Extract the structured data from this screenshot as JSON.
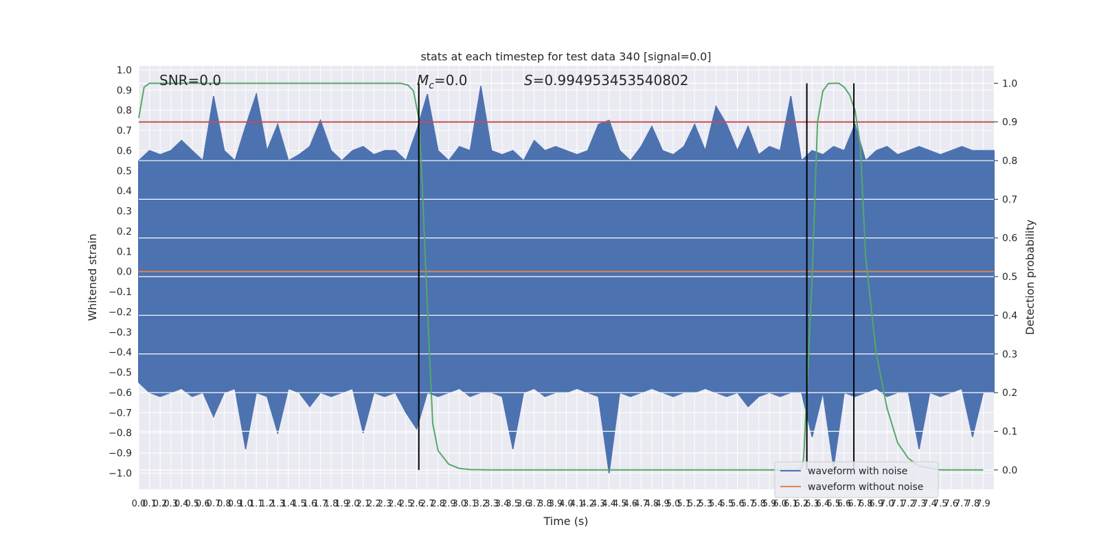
{
  "chart_data": {
    "type": "line",
    "title": "stats at each timestep for test data 340 [signal=0.0]",
    "xlabel": "Time (s)",
    "ylabel_left": "Whitened strain",
    "ylabel_right": "Detection probability",
    "xlim": [
      0.0,
      8.0
    ],
    "ylim_left": [
      -1.08,
      1.02
    ],
    "ylim_right": [
      -0.05,
      1.045
    ],
    "x_ticks": [
      0.0,
      0.1,
      0.2,
      0.3,
      0.4,
      0.5,
      0.6,
      0.7,
      0.8,
      0.9,
      1.0,
      1.1,
      1.2,
      1.3,
      1.4,
      1.5,
      1.6,
      1.7,
      1.8,
      1.9,
      2.0,
      2.1,
      2.2,
      2.3,
      2.4,
      2.5,
      2.6,
      2.7,
      2.8,
      2.9,
      3.0,
      3.1,
      3.2,
      3.3,
      3.4,
      3.5,
      3.6,
      3.7,
      3.8,
      3.9,
      4.0,
      4.1,
      4.2,
      4.3,
      4.4,
      4.5,
      4.6,
      4.7,
      4.8,
      4.9,
      5.0,
      5.1,
      5.2,
      5.3,
      5.4,
      5.5,
      5.6,
      5.7,
      5.8,
      5.9,
      6.0,
      6.1,
      6.2,
      6.3,
      6.4,
      6.5,
      6.6,
      6.7,
      6.8,
      6.9,
      7.0,
      7.1,
      7.2,
      7.3,
      7.4,
      7.5,
      7.6,
      7.7,
      7.8,
      7.9
    ],
    "x_tick_labels": [
      "0.0",
      "0.1",
      "0.2",
      "0.3",
      "0.4",
      "0.5",
      "0.6",
      "0.7",
      "0.8",
      "0.9",
      "1.0",
      "1.1",
      "1.2",
      "1.3",
      "1.4",
      "1.5",
      "1.6",
      "1.7",
      "1.8",
      "1.9",
      "2.0",
      "2.1",
      "2.2",
      "2.3",
      "2.4",
      "2.5",
      "2.6",
      "2.7",
      "2.8",
      "2.9",
      "3.0",
      "3.1",
      "3.2",
      "3.3",
      "3.4",
      "3.5",
      "3.6",
      "3.7",
      "3.8",
      "3.9",
      "4.0",
      "4.1",
      "4.2",
      "4.3",
      "4.4",
      "4.5",
      "4.6",
      "4.7",
      "4.8",
      "4.9",
      "5.0",
      "5.1",
      "5.2",
      "5.3",
      "5.4",
      "5.5",
      "5.6",
      "5.7",
      "5.8",
      "5.9",
      "6.0",
      "6.1",
      "6.2",
      "6.3",
      "6.4",
      "6.5",
      "6.6",
      "6.7",
      "6.8",
      "6.9",
      "7.0",
      "7.1",
      "7.2",
      "7.3",
      "7.4",
      "7.5",
      "7.6",
      "7.7",
      "7.8",
      "7.9"
    ],
    "y_ticks_left": [
      1.0,
      0.9,
      0.8,
      0.7,
      0.6,
      0.5,
      0.4,
      0.3,
      0.2,
      0.1,
      0.0,
      -0.1,
      -0.2,
      -0.3,
      -0.4,
      -0.5,
      -0.6,
      -0.7,
      -0.8,
      -0.9,
      -1.0
    ],
    "y_tick_labels_left": [
      "1.0",
      "0.9",
      "0.8",
      "0.7",
      "0.6",
      "0.5",
      "0.4",
      "0.3",
      "0.2",
      "0.1",
      "0.0",
      "−0.1",
      "−0.2",
      "−0.3",
      "−0.4",
      "−0.5",
      "−0.6",
      "−0.7",
      "−0.8",
      "−0.9",
      "−1.0"
    ],
    "y_ticks_right": [
      1.0,
      0.9,
      0.8,
      0.7,
      0.6,
      0.5,
      0.4,
      0.3,
      0.2,
      0.1,
      0.0
    ],
    "y_tick_labels_right": [
      "1.0",
      "0.9",
      "0.8",
      "0.7",
      "0.6",
      "0.5",
      "0.4",
      "0.3",
      "0.2",
      "0.1",
      "0.0"
    ],
    "grid": true,
    "legend_position": "bottom-right",
    "legend": [
      {
        "name": "waveform with noise",
        "color": "#4c72b0"
      },
      {
        "name": "waveform without noise",
        "color": "#dd8452"
      }
    ],
    "series": [
      {
        "role": "noise_envelope",
        "axis": "left",
        "color": "#4c72b0",
        "x": [
          0.0,
          0.1,
          0.2,
          0.3,
          0.4,
          0.5,
          0.6,
          0.7,
          0.8,
          0.9,
          1.0,
          1.1,
          1.2,
          1.3,
          1.4,
          1.5,
          1.6,
          1.7,
          1.8,
          1.9,
          2.0,
          2.1,
          2.2,
          2.3,
          2.4,
          2.5,
          2.6,
          2.7,
          2.8,
          2.9,
          3.0,
          3.1,
          3.2,
          3.3,
          3.4,
          3.5,
          3.6,
          3.7,
          3.8,
          3.9,
          4.0,
          4.1,
          4.2,
          4.3,
          4.4,
          4.5,
          4.6,
          4.7,
          4.8,
          4.9,
          5.0,
          5.1,
          5.2,
          5.3,
          5.4,
          5.5,
          5.6,
          5.7,
          5.8,
          5.9,
          6.0,
          6.1,
          6.2,
          6.3,
          6.4,
          6.5,
          6.6,
          6.7,
          6.8,
          6.9,
          7.0,
          7.1,
          7.2,
          7.3,
          7.4,
          7.5,
          7.6,
          7.7,
          7.8,
          7.9,
          8.0
        ],
        "upper": [
          0.55,
          0.6,
          0.58,
          0.6,
          0.65,
          0.6,
          0.55,
          0.87,
          0.6,
          0.55,
          0.72,
          0.88,
          0.6,
          0.73,
          0.55,
          0.58,
          0.62,
          0.75,
          0.6,
          0.55,
          0.6,
          0.62,
          0.58,
          0.6,
          0.6,
          0.55,
          0.7,
          0.88,
          0.6,
          0.55,
          0.62,
          0.6,
          0.92,
          0.6,
          0.58,
          0.6,
          0.55,
          0.65,
          0.6,
          0.62,
          0.6,
          0.58,
          0.6,
          0.73,
          0.75,
          0.6,
          0.55,
          0.62,
          0.72,
          0.6,
          0.58,
          0.62,
          0.73,
          0.6,
          0.82,
          0.73,
          0.6,
          0.72,
          0.58,
          0.62,
          0.6,
          0.87,
          0.55,
          0.6,
          0.58,
          0.62,
          0.6,
          0.73,
          0.55,
          0.6,
          0.62,
          0.58,
          0.6,
          0.62,
          0.6,
          0.58,
          0.6,
          0.62,
          0.6,
          0.6,
          0.6
        ],
        "lower": [
          -0.55,
          -0.6,
          -0.62,
          -0.6,
          -0.58,
          -0.62,
          -0.6,
          -0.72,
          -0.6,
          -0.58,
          -0.88,
          -0.6,
          -0.62,
          -0.8,
          -0.58,
          -0.6,
          -0.67,
          -0.6,
          -0.62,
          -0.6,
          -0.58,
          -0.8,
          -0.6,
          -0.62,
          -0.6,
          -0.7,
          -0.78,
          -0.6,
          -0.62,
          -0.6,
          -0.58,
          -0.62,
          -0.6,
          -0.6,
          -0.62,
          -0.88,
          -0.6,
          -0.58,
          -0.62,
          -0.6,
          -0.6,
          -0.58,
          -0.6,
          -0.62,
          -1.0,
          -0.6,
          -0.62,
          -0.6,
          -0.58,
          -0.6,
          -0.62,
          -0.6,
          -0.6,
          -0.58,
          -0.6,
          -0.62,
          -0.6,
          -0.67,
          -0.62,
          -0.6,
          -0.62,
          -0.6,
          -0.6,
          -0.82,
          -0.6,
          -0.97,
          -0.6,
          -0.62,
          -0.6,
          -0.58,
          -0.62,
          -0.6,
          -0.6,
          -0.88,
          -0.6,
          -0.62,
          -0.6,
          -0.58,
          -0.82,
          -0.6,
          -0.6
        ]
      },
      {
        "name": "waveform without noise",
        "axis": "left",
        "color": "#dd8452",
        "x": [
          0.0,
          8.0
        ],
        "y": [
          0.0,
          0.0
        ]
      },
      {
        "role": "detection_probability",
        "axis": "right",
        "color": "#55a868",
        "x": [
          0.0,
          0.05,
          0.1,
          0.2,
          0.5,
          1.0,
          1.5,
          2.0,
          2.3,
          2.45,
          2.52,
          2.57,
          2.62,
          2.65,
          2.68,
          2.72,
          2.75,
          2.8,
          2.9,
          3.0,
          3.1,
          3.3,
          3.5,
          4.0,
          5.0,
          6.0,
          6.15,
          6.2,
          6.22,
          6.25,
          6.3,
          6.35,
          6.4,
          6.45,
          6.5,
          6.55,
          6.6,
          6.65,
          6.7,
          6.75,
          6.8,
          6.9,
          7.0,
          7.1,
          7.2,
          7.3,
          7.5,
          7.9
        ],
        "y": [
          0.91,
          0.99,
          1.0,
          1.0,
          1.0,
          1.0,
          1.0,
          1.0,
          1.0,
          1.0,
          0.995,
          0.98,
          0.91,
          0.75,
          0.55,
          0.3,
          0.12,
          0.05,
          0.015,
          0.004,
          0.001,
          0.0,
          0.0,
          0.0,
          0.0,
          0.0,
          0.0,
          0.005,
          0.03,
          0.2,
          0.5,
          0.9,
          0.98,
          0.999,
          1.0,
          1.0,
          0.99,
          0.97,
          0.93,
          0.84,
          0.55,
          0.3,
          0.16,
          0.07,
          0.03,
          0.01,
          0.0,
          0.0
        ]
      },
      {
        "role": "threshold",
        "axis": "right",
        "color": "#c44e52",
        "x": [
          0.0,
          8.0
        ],
        "y": [
          0.9,
          0.9
        ]
      }
    ],
    "vertical_markers": [
      2.62,
      6.25,
      6.69
    ],
    "annotations": [
      {
        "id": "snr",
        "text": "SNR=0.0",
        "x": 0.2
      },
      {
        "id": "mc",
        "text": "=0.0",
        "symbol": "M",
        "subscript": "c",
        "x": 2.6
      },
      {
        "id": "s",
        "text": "=0.994953453540802",
        "symbol": "S",
        "x": 3.6
      }
    ]
  }
}
